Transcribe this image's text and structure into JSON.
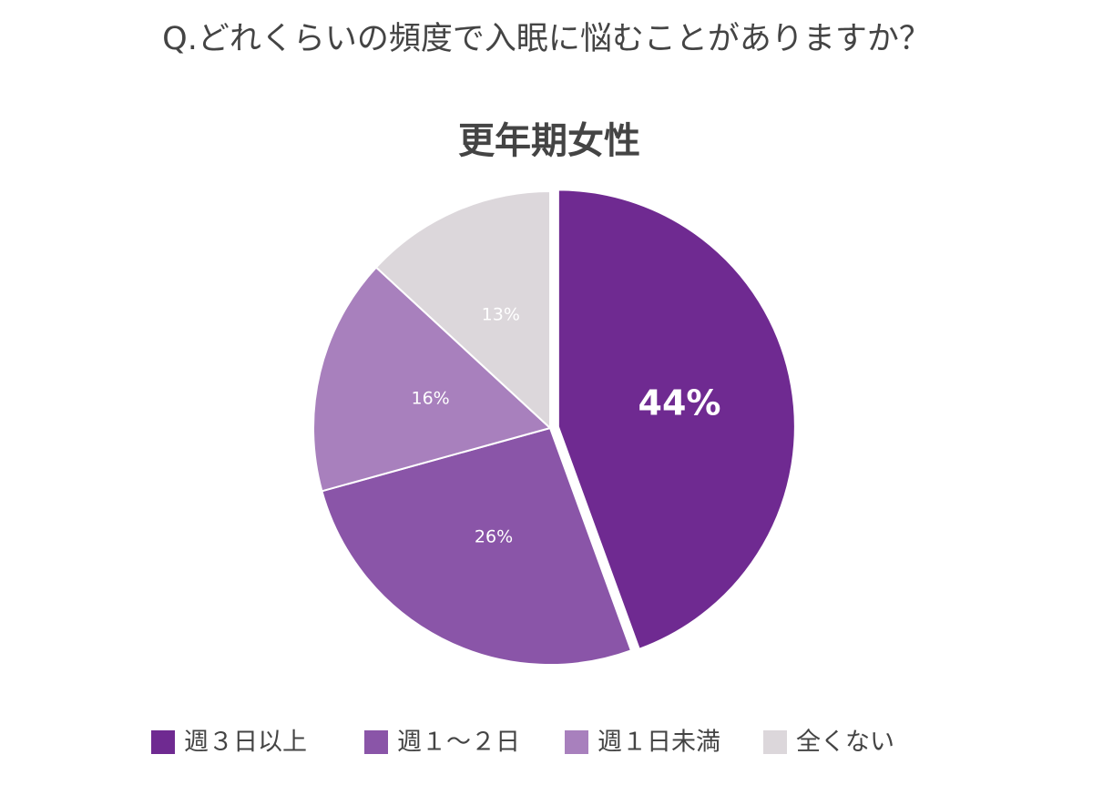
{
  "chart_data": {
    "type": "pie",
    "title": "Q.どれくらいの頻度で入眠に悩むことがありますか？",
    "subtitle": "更年期女性",
    "categories": [
      "週３日以上",
      "週１～２日",
      "週１日未満",
      "全くない"
    ],
    "values": [
      44,
      26,
      16,
      13
    ],
    "value_labels": [
      "44%",
      "26%",
      "16%",
      "13%"
    ],
    "colors": [
      "#6f2a91",
      "#8a55a8",
      "#a880bd",
      "#dcd7db"
    ],
    "legend": "bottom"
  }
}
